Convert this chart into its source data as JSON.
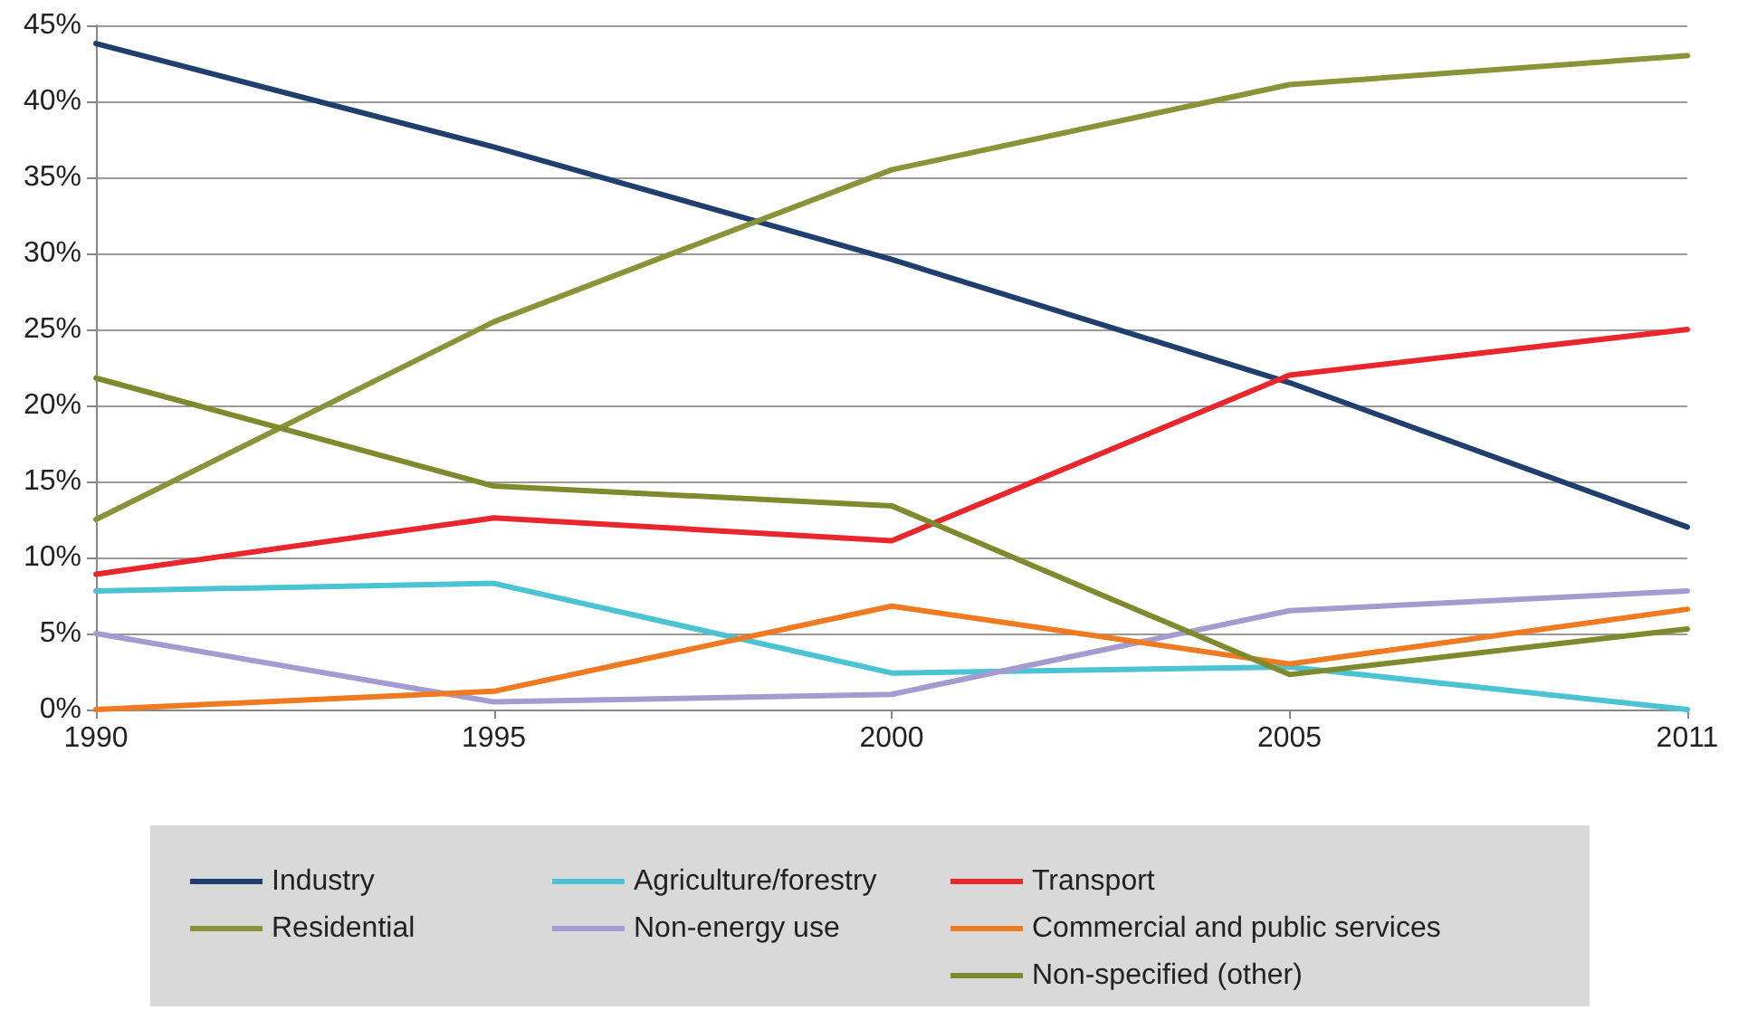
{
  "chart_data": {
    "type": "line",
    "categories": [
      "1990",
      "1995",
      "2000",
      "2005",
      "2011"
    ],
    "ylim": [
      0,
      45
    ],
    "yticks": [
      {
        "value": 0,
        "label": "0%"
      },
      {
        "value": 5,
        "label": "5%"
      },
      {
        "value": 10,
        "label": "10%"
      },
      {
        "value": 15,
        "label": "15%"
      },
      {
        "value": 20,
        "label": "20%"
      },
      {
        "value": 25,
        "label": "25%"
      },
      {
        "value": 30,
        "label": "30%"
      },
      {
        "value": 35,
        "label": "35%"
      },
      {
        "value": 40,
        "label": "40%"
      },
      {
        "value": 45,
        "label": "45%"
      }
    ],
    "grid": "y",
    "legend": "bottom",
    "marker": "none",
    "line_style": "solid",
    "series": [
      {
        "name": "Industry",
        "color": "#1f3f6e",
        "values": [
          43.8,
          37,
          29.6,
          21.5,
          12
        ]
      },
      {
        "name": "Residential",
        "color": "#8a9337",
        "values": [
          12.5,
          25.5,
          35.5,
          41.1,
          43
        ]
      },
      {
        "name": "Agriculture/forestry",
        "color": "#4cc3d2",
        "values": [
          7.8,
          8.3,
          2.4,
          2.8,
          0
        ]
      },
      {
        "name": "Non-energy use",
        "color": "#a49cd0",
        "values": [
          5,
          0.5,
          1,
          6.5,
          7.8
        ]
      },
      {
        "name": "Transport",
        "color": "#e8262b",
        "values": [
          8.9,
          12.6,
          11.1,
          22,
          25
        ]
      },
      {
        "name": "Commercial and public services",
        "color": "#f07a22",
        "values": [
          0,
          1.2,
          6.8,
          3,
          6.6
        ]
      },
      {
        "name": "Non-specified (other)",
        "color": "#7f8a2e",
        "values": [
          21.8,
          14.7,
          13.4,
          2.3,
          5.3
        ]
      }
    ]
  }
}
